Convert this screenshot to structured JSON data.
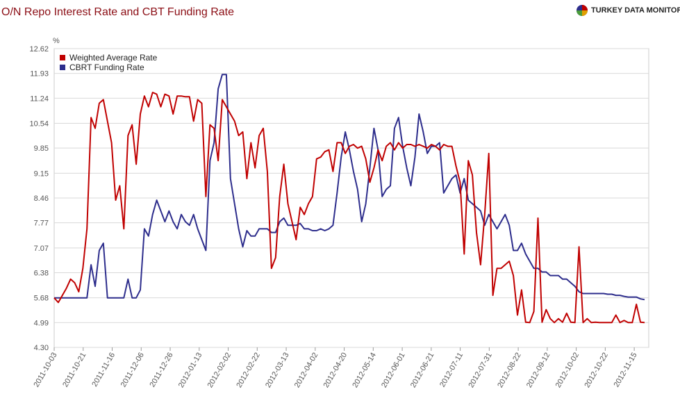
{
  "header": {
    "title": "O/N Repo Interest Rate and CBT Funding Rate",
    "brand": "TURKEY DATA MONITOR",
    "brand_icon": "pie-logo-icon"
  },
  "chart_data": {
    "type": "line",
    "title": "O/N Repo Interest Rate and CBT Funding Rate",
    "ylabel": "%",
    "xlabel": "",
    "ylim": [
      4.3,
      12.62
    ],
    "yticks": [
      "4.30",
      "4.99",
      "5.68",
      "6.38",
      "7.07",
      "7.77",
      "8.46",
      "9.15",
      "9.85",
      "10.54",
      "11.24",
      "11.93",
      "12.62"
    ],
    "xticks": [
      "2011-10-03",
      "2011-10-21",
      "2011-11-16",
      "2011-12-06",
      "2011-12-26",
      "2012-01-13",
      "2012-02-02",
      "2012-02-22",
      "2012-03-13",
      "2012-04-02",
      "2012-04-20",
      "2012-05-14",
      "2012-06-01",
      "2012-06-21",
      "2012-07-11",
      "2012-07-31",
      "2012-08-22",
      "2012-09-12",
      "2012-10-02",
      "2012-10-22",
      "2012-11-15"
    ],
    "grid": true,
    "legend_position": "top-left",
    "series": [
      {
        "name": "Weighted Average Rate",
        "color": "#c00000",
        "points": [
          [
            0,
            5.68
          ],
          [
            1,
            5.55
          ],
          [
            2,
            5.75
          ],
          [
            3,
            5.95
          ],
          [
            4,
            6.2
          ],
          [
            5,
            6.1
          ],
          [
            6,
            5.85
          ],
          [
            7,
            6.5
          ],
          [
            8,
            7.6
          ],
          [
            9,
            10.7
          ],
          [
            10,
            10.4
          ],
          [
            11,
            11.1
          ],
          [
            12,
            11.2
          ],
          [
            13,
            10.6
          ],
          [
            14,
            10.0
          ],
          [
            15,
            8.4
          ],
          [
            16,
            8.8
          ],
          [
            17,
            7.6
          ],
          [
            18,
            10.2
          ],
          [
            19,
            10.5
          ],
          [
            20,
            9.4
          ],
          [
            21,
            10.8
          ],
          [
            22,
            11.3
          ],
          [
            23,
            11.0
          ],
          [
            24,
            11.4
          ],
          [
            25,
            11.35
          ],
          [
            26,
            11.0
          ],
          [
            27,
            11.35
          ],
          [
            28,
            11.3
          ],
          [
            29,
            10.8
          ],
          [
            30,
            11.3
          ],
          [
            31,
            11.3
          ],
          [
            32,
            11.28
          ],
          [
            33,
            11.28
          ],
          [
            34,
            10.6
          ],
          [
            35,
            11.2
          ],
          [
            36,
            11.1
          ],
          [
            37,
            8.5
          ],
          [
            38,
            10.5
          ],
          [
            39,
            10.4
          ],
          [
            40,
            9.5
          ],
          [
            41,
            11.2
          ],
          [
            42,
            11.0
          ],
          [
            43,
            10.8
          ],
          [
            44,
            10.6
          ],
          [
            45,
            10.2
          ],
          [
            46,
            10.3
          ],
          [
            47,
            9.0
          ],
          [
            48,
            10.0
          ],
          [
            49,
            9.3
          ],
          [
            50,
            10.2
          ],
          [
            51,
            10.4
          ],
          [
            52,
            9.2
          ],
          [
            53,
            6.5
          ],
          [
            54,
            6.8
          ],
          [
            55,
            8.5
          ],
          [
            56,
            9.4
          ],
          [
            57,
            8.3
          ],
          [
            58,
            7.8
          ],
          [
            59,
            7.3
          ],
          [
            60,
            8.2
          ],
          [
            61,
            8.0
          ],
          [
            62,
            8.3
          ],
          [
            63,
            8.5
          ],
          [
            64,
            9.55
          ],
          [
            65,
            9.6
          ],
          [
            66,
            9.75
          ],
          [
            67,
            9.8
          ],
          [
            68,
            9.2
          ],
          [
            69,
            10.0
          ],
          [
            70,
            10.0
          ],
          [
            71,
            9.7
          ],
          [
            72,
            9.9
          ],
          [
            73,
            9.95
          ],
          [
            74,
            9.85
          ],
          [
            75,
            9.9
          ],
          [
            76,
            9.55
          ],
          [
            77,
            8.9
          ],
          [
            78,
            9.3
          ],
          [
            79,
            9.8
          ],
          [
            80,
            9.5
          ],
          [
            81,
            9.9
          ],
          [
            82,
            10.0
          ],
          [
            83,
            9.8
          ],
          [
            84,
            10.0
          ],
          [
            85,
            9.85
          ],
          [
            86,
            9.95
          ],
          [
            87,
            9.95
          ],
          [
            88,
            9.9
          ],
          [
            89,
            9.95
          ],
          [
            90,
            9.9
          ],
          [
            91,
            9.85
          ],
          [
            92,
            9.95
          ],
          [
            93,
            9.9
          ],
          [
            94,
            9.8
          ],
          [
            95,
            9.95
          ],
          [
            96,
            9.9
          ],
          [
            97,
            9.9
          ],
          [
            98,
            9.35
          ],
          [
            99,
            8.9
          ],
          [
            100,
            6.9
          ],
          [
            101,
            9.5
          ],
          [
            102,
            9.1
          ],
          [
            103,
            7.5
          ],
          [
            104,
            6.6
          ],
          [
            105,
            8.0
          ],
          [
            106,
            9.7
          ],
          [
            107,
            5.75
          ],
          [
            108,
            6.5
          ],
          [
            109,
            6.5
          ],
          [
            110,
            6.6
          ],
          [
            111,
            6.7
          ],
          [
            112,
            6.3
          ],
          [
            113,
            5.2
          ],
          [
            114,
            5.9
          ],
          [
            115,
            5.0
          ],
          [
            116,
            4.99
          ],
          [
            117,
            5.3
          ],
          [
            118,
            7.9
          ],
          [
            119,
            5.0
          ],
          [
            120,
            5.35
          ],
          [
            121,
            5.1
          ],
          [
            122,
            4.99
          ],
          [
            123,
            5.1
          ],
          [
            124,
            5.0
          ],
          [
            125,
            5.25
          ],
          [
            126,
            5.0
          ],
          [
            127,
            4.99
          ],
          [
            128,
            7.1
          ],
          [
            129,
            4.99
          ],
          [
            130,
            5.1
          ],
          [
            131,
            4.99
          ],
          [
            132,
            5.0
          ],
          [
            133,
            4.99
          ],
          [
            134,
            4.99
          ],
          [
            135,
            4.99
          ],
          [
            136,
            4.99
          ],
          [
            137,
            5.2
          ],
          [
            138,
            4.99
          ],
          [
            139,
            5.05
          ],
          [
            140,
            4.99
          ],
          [
            141,
            4.99
          ],
          [
            142,
            5.5
          ],
          [
            143,
            5.0
          ],
          [
            144,
            4.99
          ]
        ]
      },
      {
        "name": "CBRT Funding Rate",
        "color": "#2d2d8c",
        "points": [
          [
            0,
            5.68
          ],
          [
            8,
            5.68
          ],
          [
            9,
            6.6
          ],
          [
            10,
            6.0
          ],
          [
            11,
            7.0
          ],
          [
            12,
            7.2
          ],
          [
            13,
            5.68
          ],
          [
            17,
            5.68
          ],
          [
            18,
            6.2
          ],
          [
            19,
            5.68
          ],
          [
            20,
            5.68
          ],
          [
            21,
            5.9
          ],
          [
            22,
            7.6
          ],
          [
            23,
            7.4
          ],
          [
            24,
            8.0
          ],
          [
            25,
            8.4
          ],
          [
            26,
            8.1
          ],
          [
            27,
            7.8
          ],
          [
            28,
            8.1
          ],
          [
            29,
            7.8
          ],
          [
            30,
            7.6
          ],
          [
            31,
            8.0
          ],
          [
            32,
            7.8
          ],
          [
            33,
            7.7
          ],
          [
            34,
            8.0
          ],
          [
            35,
            7.6
          ],
          [
            36,
            7.3
          ],
          [
            37,
            7.0
          ],
          [
            38,
            9.5
          ],
          [
            39,
            10.0
          ],
          [
            40,
            11.5
          ],
          [
            41,
            11.9
          ],
          [
            42,
            11.9
          ],
          [
            43,
            9.0
          ],
          [
            44,
            8.3
          ],
          [
            45,
            7.6
          ],
          [
            46,
            7.1
          ],
          [
            47,
            7.55
          ],
          [
            48,
            7.4
          ],
          [
            49,
            7.4
          ],
          [
            50,
            7.6
          ],
          [
            51,
            7.6
          ],
          [
            52,
            7.6
          ],
          [
            53,
            7.5
          ],
          [
            54,
            7.5
          ],
          [
            55,
            7.8
          ],
          [
            56,
            7.9
          ],
          [
            57,
            7.7
          ],
          [
            58,
            7.7
          ],
          [
            59,
            7.7
          ],
          [
            60,
            7.75
          ],
          [
            61,
            7.6
          ],
          [
            62,
            7.6
          ],
          [
            63,
            7.55
          ],
          [
            64,
            7.55
          ],
          [
            65,
            7.6
          ],
          [
            66,
            7.55
          ],
          [
            67,
            7.6
          ],
          [
            68,
            7.7
          ],
          [
            69,
            8.6
          ],
          [
            70,
            9.6
          ],
          [
            71,
            10.3
          ],
          [
            72,
            9.8
          ],
          [
            73,
            9.2
          ],
          [
            74,
            8.7
          ],
          [
            75,
            7.8
          ],
          [
            76,
            8.3
          ],
          [
            77,
            9.3
          ],
          [
            78,
            10.4
          ],
          [
            79,
            9.8
          ],
          [
            80,
            8.5
          ],
          [
            81,
            8.7
          ],
          [
            82,
            8.8
          ],
          [
            83,
            10.4
          ],
          [
            84,
            10.7
          ],
          [
            85,
            9.9
          ],
          [
            86,
            9.3
          ],
          [
            87,
            8.8
          ],
          [
            88,
            9.6
          ],
          [
            89,
            10.8
          ],
          [
            90,
            10.3
          ],
          [
            91,
            9.7
          ],
          [
            92,
            9.9
          ],
          [
            93,
            9.9
          ],
          [
            94,
            10.0
          ],
          [
            95,
            8.6
          ],
          [
            96,
            8.8
          ],
          [
            97,
            9.0
          ],
          [
            98,
            9.1
          ],
          [
            99,
            8.6
          ],
          [
            100,
            9.0
          ],
          [
            101,
            8.4
          ],
          [
            102,
            8.3
          ],
          [
            103,
            8.2
          ],
          [
            104,
            8.1
          ],
          [
            105,
            7.7
          ],
          [
            106,
            8.0
          ],
          [
            107,
            7.8
          ],
          [
            108,
            7.6
          ],
          [
            109,
            7.8
          ],
          [
            110,
            8.0
          ],
          [
            111,
            7.7
          ],
          [
            112,
            7.0
          ],
          [
            113,
            7.0
          ],
          [
            114,
            7.2
          ],
          [
            115,
            6.9
          ],
          [
            116,
            6.7
          ],
          [
            117,
            6.5
          ],
          [
            118,
            6.5
          ],
          [
            119,
            6.4
          ],
          [
            120,
            6.4
          ],
          [
            121,
            6.3
          ],
          [
            122,
            6.3
          ],
          [
            123,
            6.3
          ],
          [
            124,
            6.2
          ],
          [
            125,
            6.2
          ],
          [
            126,
            6.1
          ],
          [
            127,
            6.0
          ],
          [
            128,
            5.85
          ],
          [
            129,
            5.8
          ],
          [
            130,
            5.8
          ],
          [
            131,
            5.8
          ],
          [
            132,
            5.8
          ],
          [
            133,
            5.8
          ],
          [
            134,
            5.8
          ],
          [
            135,
            5.78
          ],
          [
            136,
            5.78
          ],
          [
            137,
            5.75
          ],
          [
            138,
            5.75
          ],
          [
            139,
            5.72
          ],
          [
            140,
            5.7
          ],
          [
            141,
            5.7
          ],
          [
            142,
            5.7
          ],
          [
            143,
            5.65
          ],
          [
            144,
            5.63
          ]
        ]
      }
    ]
  }
}
